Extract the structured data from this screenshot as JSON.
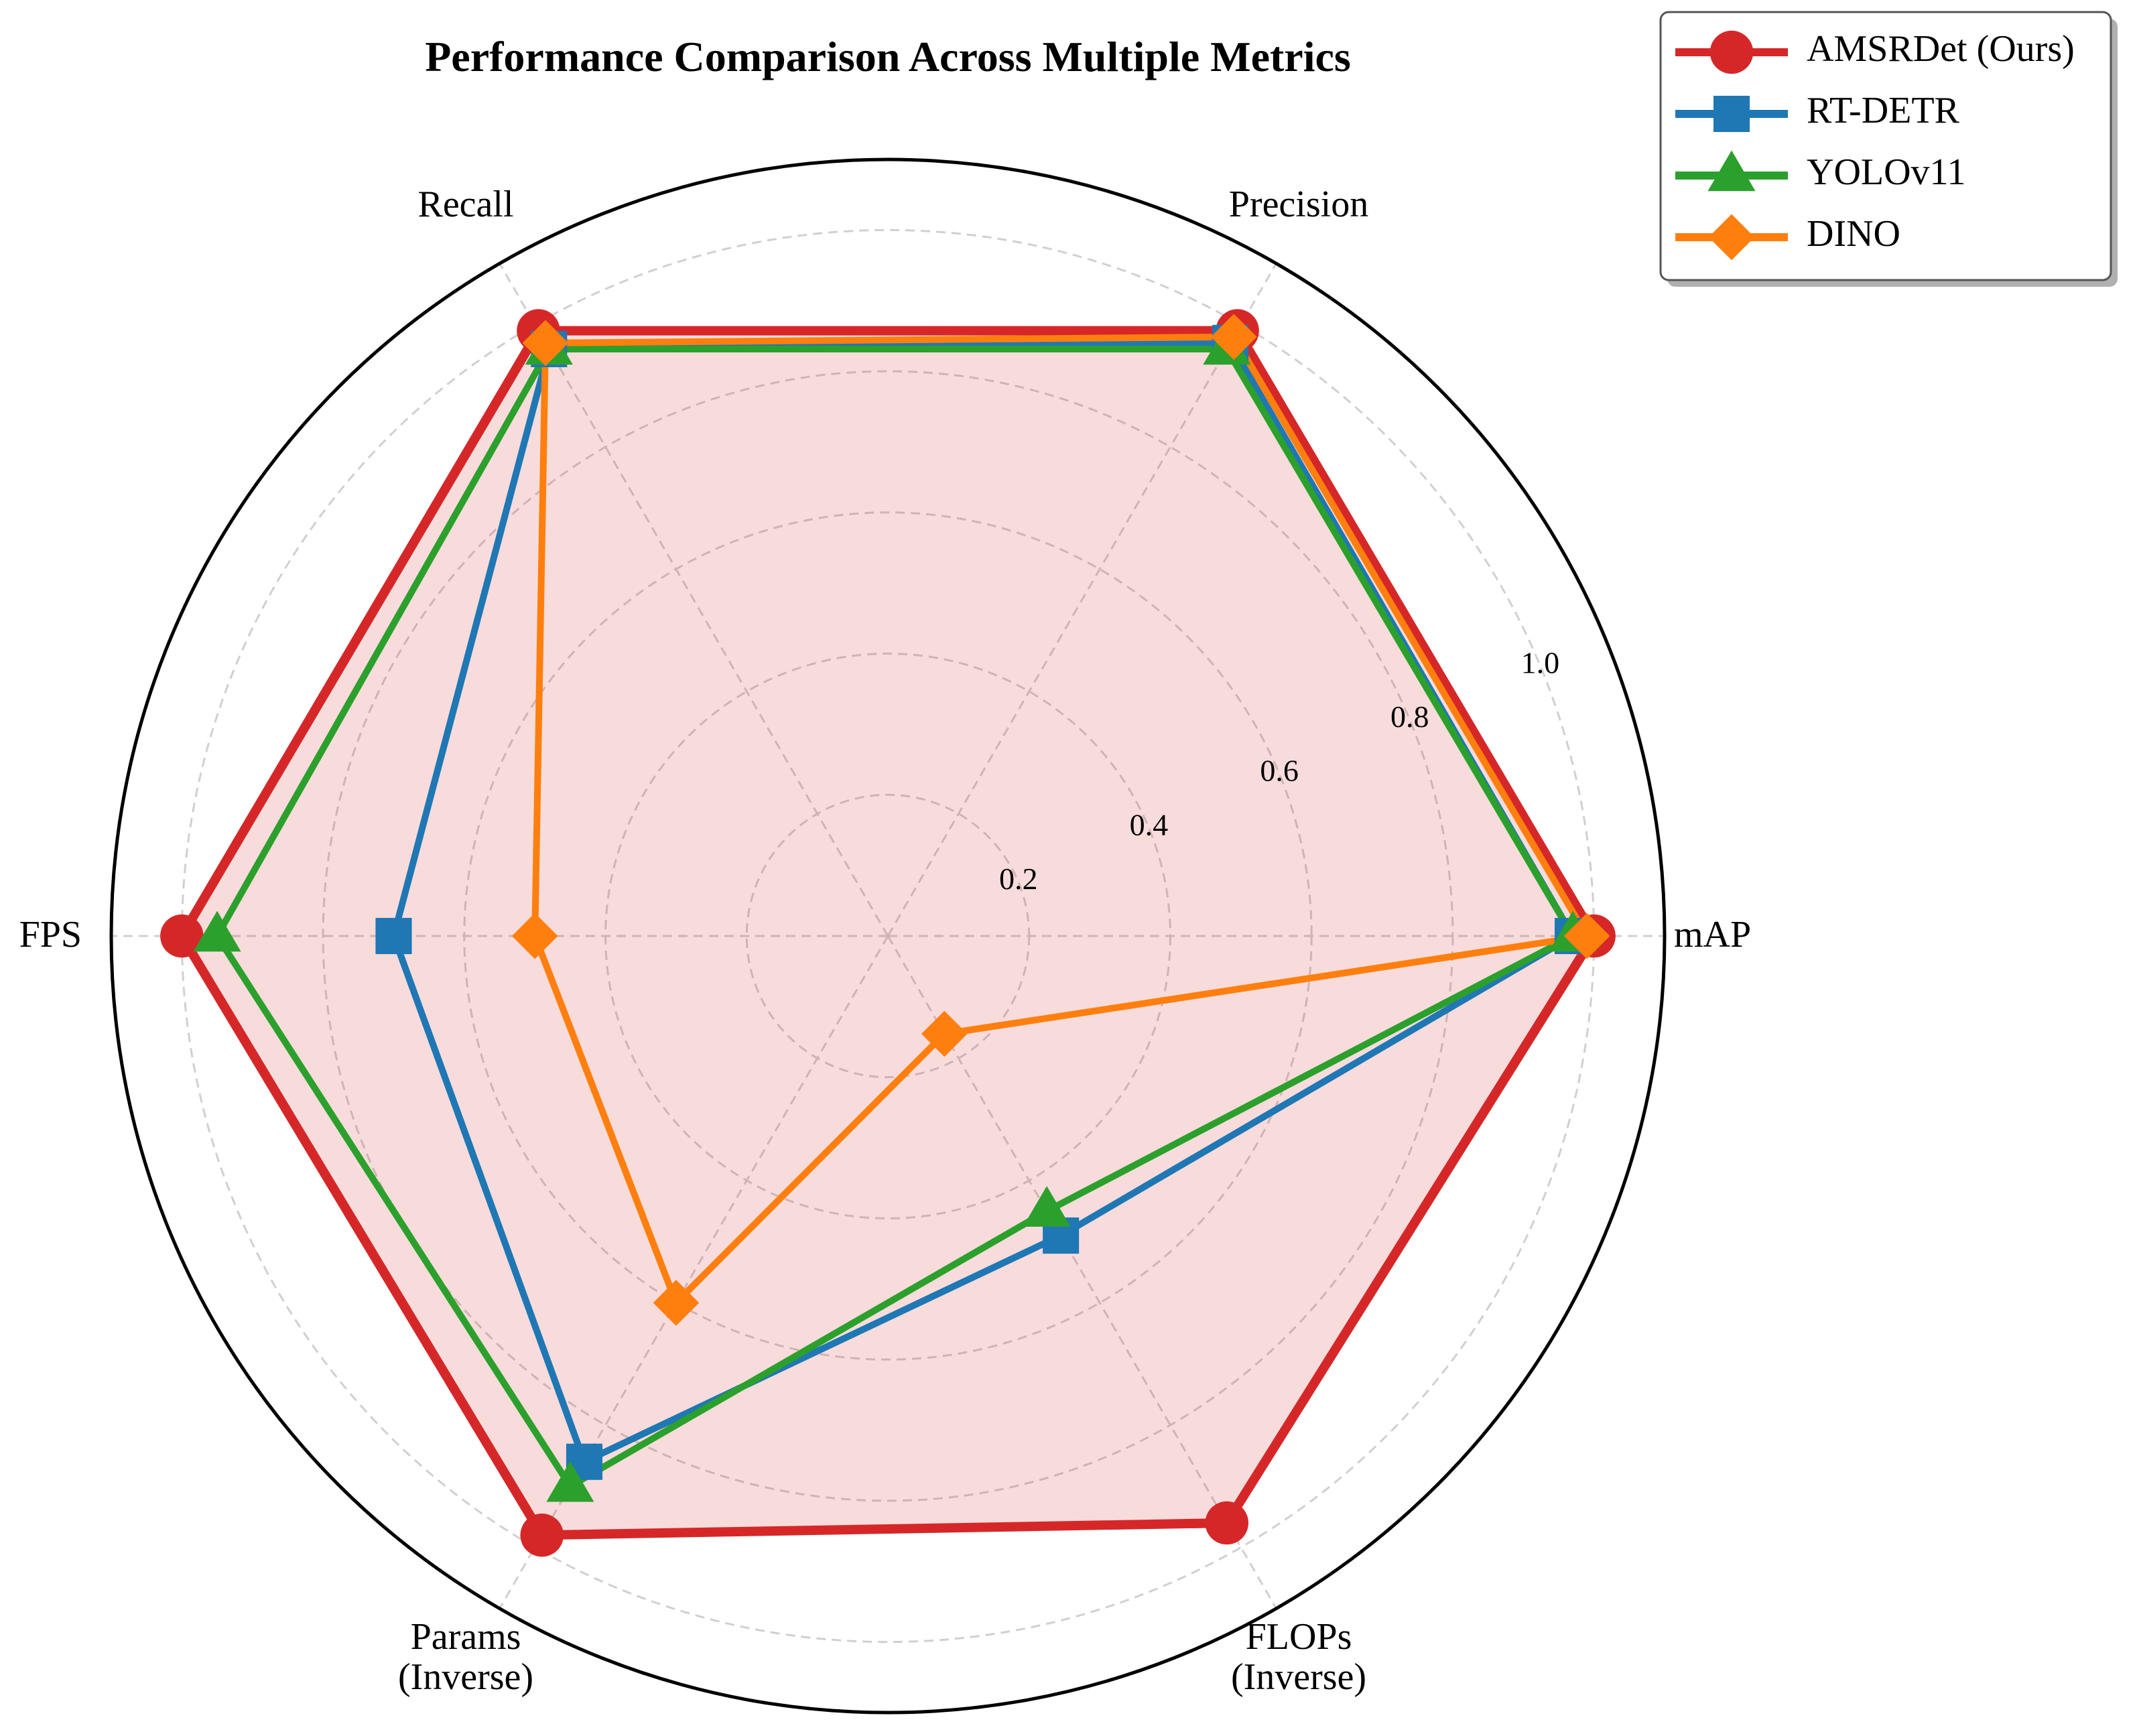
{
  "chart_data": {
    "type": "radar",
    "title": "Performance Comparison Across Multiple Metrics",
    "axes": [
      "mAP",
      "Precision",
      "Recall",
      "FPS",
      "Params\n(Inverse)",
      "FLOPs\n(Inverse)"
    ],
    "radial_ticks": [
      "0.2",
      "0.4",
      "0.6",
      "0.8",
      "1.0"
    ],
    "radial_tick_values": [
      0.2,
      0.4,
      0.6,
      0.8,
      1.0
    ],
    "rmax": 1.1,
    "grid": true,
    "legend_position": "top-right",
    "series": [
      {
        "name": "AMSRDet (Ours)",
        "color": "#d62728",
        "marker": "circle",
        "fill": true,
        "values": [
          1.0,
          0.99,
          0.99,
          1.0,
          0.98,
          0.96
        ]
      },
      {
        "name": "RT-DETR",
        "color": "#1f77b4",
        "marker": "square",
        "values": [
          0.97,
          0.97,
          0.96,
          0.7,
          0.86,
          0.49
        ]
      },
      {
        "name": "YOLOv11",
        "color": "#2ca02c",
        "marker": "triangle",
        "values": [
          0.97,
          0.96,
          0.96,
          0.95,
          0.9,
          0.45
        ]
      },
      {
        "name": "DINO",
        "color": "#ff7f0e",
        "marker": "diamond",
        "values": [
          0.99,
          0.98,
          0.97,
          0.5,
          0.6,
          0.16
        ]
      }
    ]
  }
}
